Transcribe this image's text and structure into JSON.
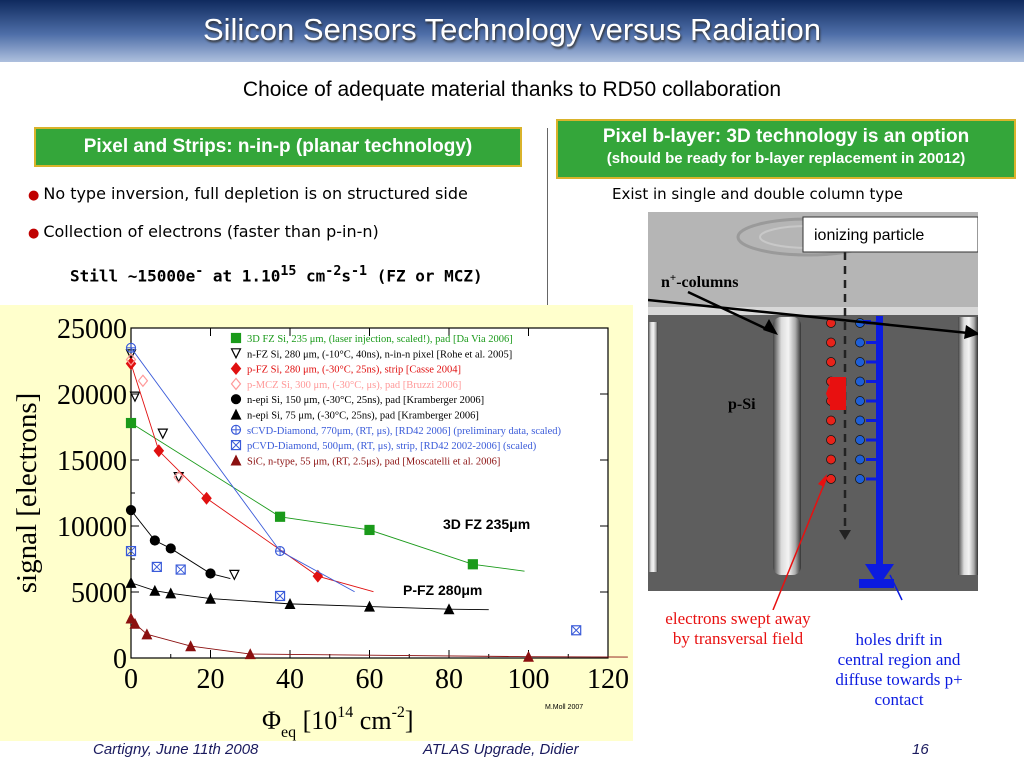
{
  "slide": {
    "title": "Silicon Sensors Technology versus Radiation",
    "subtitle": "Choice of adequate material thanks to RD50 collaboration",
    "left_box": "Pixel and Strips: n-in-p (planar technology)",
    "right_box_line1": "Pixel b-layer: 3D technology is an option",
    "right_box_line2": "(should be ready  for b-layer replacement in 20012)",
    "bullets": [
      "No type inversion, full depletion is on structured side",
      "Collection of electrons (faster than p-in-n)"
    ],
    "still_text": {
      "a": "Still ~15000e",
      "b": "-",
      "c": " at 1.10",
      "d": "15",
      "e": " cm",
      "f": "-2",
      "g": "s",
      "h": "-1",
      "i": " (FZ or MCZ)"
    },
    "exist_text": "Exist in single and double column type",
    "footer_left": "Cartigny, June 11th 2008",
    "footer_center": "ATLAS Upgrade, Didier",
    "footer_right": "16"
  },
  "figure": {
    "ionizing_label": "ionizing particle",
    "ncol_label_a": "n",
    "ncol_label_b": "+",
    "ncol_label_c": "-columns",
    "psi_label": "p-Si",
    "electrons_caption_1": "electrons swept away",
    "electrons_caption_2": "by transversal field",
    "holes_caption_1": "holes drift in",
    "holes_caption_2": "central region and",
    "holes_caption_3": "diffuse towards p+",
    "holes_caption_4": "contact",
    "colors": {
      "electron": "#e8231a",
      "hole": "#1f5fd6",
      "arrow": "#0b1be0",
      "drift": "#ff2020"
    }
  },
  "chart_data": {
    "type": "scatter",
    "ylabel": "signal [electrons]",
    "xlabel": {
      "main": "Φ",
      "sub": "eq",
      "rest": "  [10",
      "sup1": "14",
      "cm": " cm",
      "sup2": "-2",
      "end": "]"
    },
    "xlim": [
      0,
      120
    ],
    "ylim": [
      0,
      25000
    ],
    "x_ticks": [
      0,
      20,
      40,
      60,
      80,
      100,
      120
    ],
    "y_ticks": [
      0,
      5000,
      10000,
      15000,
      20000,
      25000
    ],
    "annotations": [
      "3D FZ 235μm",
      "P-FZ 280μm",
      "M.Moll 2007"
    ],
    "series": [
      {
        "name": "3D FZ Si, 235 μm,  (laser injection, scaled!), pad [Da Via 2006]",
        "color": "#1a9a1a",
        "marker": "square-filled",
        "x": [
          0,
          37.5,
          60,
          86
        ],
        "y": [
          17800,
          10700,
          9700,
          7100
        ],
        "fit": true
      },
      {
        "name": "n-FZ Si, 280 μm,  (-10°C, 40ns), n-in-n pixel [Rohe et al. 2005]",
        "color": "#000000",
        "marker": "triangle-down-open",
        "x": [
          0,
          1,
          8,
          12,
          26
        ],
        "y": [
          23000,
          19800,
          17000,
          13700,
          6300
        ],
        "fit": false
      },
      {
        "name": "p-FZ Si, 280 μm,  (-30°C, 25ns), strip [Casse 2004]",
        "color": "#e01010",
        "marker": "diamond-filled",
        "x": [
          0,
          7,
          19,
          47
        ],
        "y": [
          22300,
          15700,
          12100,
          6200
        ],
        "fit": true
      },
      {
        "name": "p-MCZ Si, 300 μm,  (-30°C, μs), pad [Bruzzi 2006]",
        "color": "#ff9999",
        "marker": "diamond-open",
        "x": [
          0,
          3,
          12
        ],
        "y": [
          22600,
          21000,
          13700
        ],
        "fit": false
      },
      {
        "name": "n-epi Si, 150 μm,  (-30°C, 25ns), pad [Kramberger 2006]",
        "color": "#000000",
        "marker": "circle-filled",
        "x": [
          0,
          6,
          10,
          20
        ],
        "y": [
          11200,
          8900,
          8300,
          6400
        ],
        "fit": true
      },
      {
        "name": "n-epi Si, 75 μm,  (-30°C, 25ns), pad [Kramberger 2006]",
        "color": "#000000",
        "marker": "triangle-up-filled",
        "x": [
          0,
          6,
          10,
          20,
          40,
          60,
          80
        ],
        "y": [
          5700,
          5100,
          4900,
          4500,
          4100,
          3900,
          3700
        ],
        "fit": true
      },
      {
        "name": "sCVD-Diamond, 770μm, (RT, μs),  [RD42 2006] (preliminary data, scaled)",
        "color": "#3a5bd9",
        "marker": "circle-cross-open",
        "x": [
          0,
          37.5
        ],
        "y": [
          23500,
          8100
        ],
        "fit": true
      },
      {
        "name": "pCVD-Diamond, 500μm, (RT, μs), strip, [RD42 2002-2006] (scaled)",
        "color": "#3a5bd9",
        "marker": "square-cross-open",
        "x": [
          0,
          6.5,
          12.5,
          37.5,
          112
        ],
        "y": [
          8100,
          6900,
          6700,
          4700,
          2100
        ],
        "fit": false
      },
      {
        "name": "SiC, n-type, 55 μm, (RT, 2.5μs), pad [Moscatelli et al. 2006]",
        "color": "#8b1010",
        "marker": "triangle-up-filled",
        "x": [
          0,
          1,
          4,
          15,
          30,
          100
        ],
        "y": [
          3000,
          2600,
          1800,
          900,
          300,
          100
        ],
        "fit": true
      }
    ],
    "legend_position": "top-right"
  }
}
